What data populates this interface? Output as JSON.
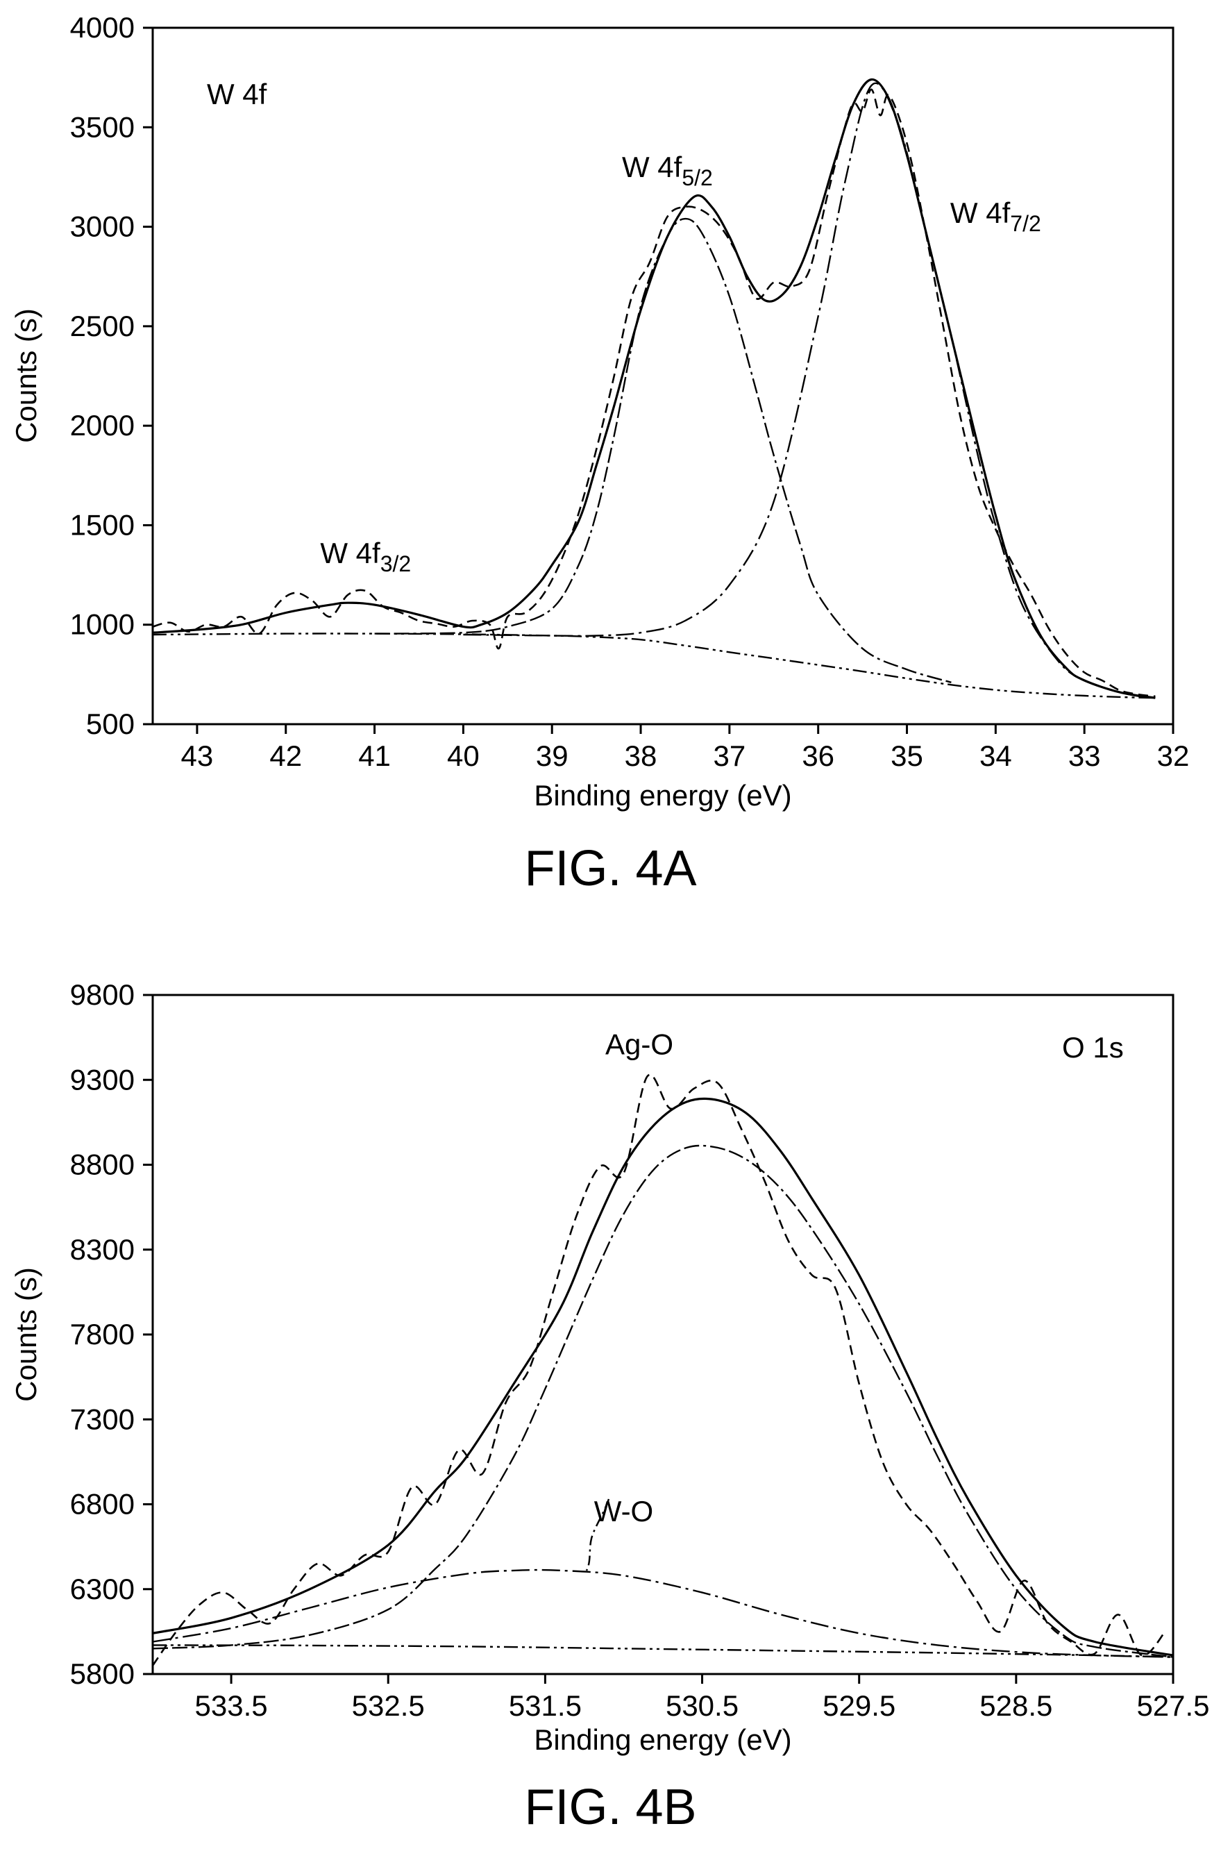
{
  "chart_data": [
    {
      "type": "line",
      "caption": "FIG. 4A",
      "panel_label": "W 4f",
      "xlabel": "Binding energy (eV)",
      "ylabel": "Counts (s)",
      "xlim": [
        43.5,
        32
      ],
      "ylim": [
        500,
        4000
      ],
      "x_reversed": true,
      "xticks": [
        43,
        42,
        41,
        40,
        39,
        38,
        37,
        36,
        35,
        34,
        33,
        32
      ],
      "yticks": [
        500,
        1000,
        1500,
        2000,
        2500,
        3000,
        3500,
        4000
      ],
      "grid": false,
      "legend": "none",
      "annotations": [
        {
          "base": "W 4f",
          "sub": "3/2",
          "x": 41.1,
          "y": 1310
        },
        {
          "base": "W 4f",
          "sub": "5/2",
          "x": 37.7,
          "y": 3250
        },
        {
          "base": "W 4f",
          "sub": "7/2",
          "x": 34.0,
          "y": 3020
        }
      ],
      "series": [
        {
          "role": "background",
          "style": "dash-dot-dot",
          "x": [
            43.5,
            42,
            41,
            40,
            39,
            38.5,
            38,
            37.5,
            37,
            36.5,
            36,
            35.5,
            35,
            34.5,
            34,
            33.5,
            33,
            32.5,
            32.2
          ],
          "y": [
            950,
            955,
            955,
            952,
            945,
            938,
            925,
            895,
            862,
            830,
            798,
            765,
            730,
            698,
            672,
            655,
            643,
            635,
            632
          ]
        },
        {
          "role": "component W 4f7/2",
          "style": "dash-dot",
          "x": [
            40,
            39,
            38.5,
            38,
            37.5,
            37,
            36.5,
            36,
            35.7,
            35.4,
            35.1,
            34.8,
            34.5,
            34.2,
            34,
            33.7,
            33.3,
            33,
            32.5,
            32.2
          ],
          "y": [
            950,
            945,
            945,
            960,
            1020,
            1200,
            1620,
            2550,
            3220,
            3710,
            3520,
            3000,
            2450,
            1850,
            1500,
            1100,
            820,
            720,
            650,
            632
          ]
        },
        {
          "role": "component W 4f5/2",
          "style": "dash-dash-dot",
          "x": [
            41,
            40,
            39.5,
            39,
            38.7,
            38.5,
            38.3,
            38,
            37.7,
            37.5,
            37.3,
            37,
            36.7,
            36.5,
            36.2,
            36,
            35.5,
            35,
            34.5
          ],
          "y": [
            955,
            960,
            990,
            1080,
            1300,
            1560,
            1950,
            2600,
            2950,
            3040,
            2960,
            2650,
            2180,
            1850,
            1400,
            1150,
            880,
            775,
            710
          ]
        },
        {
          "role": "envelope fit",
          "style": "solid",
          "x": [
            43.5,
            43,
            42.5,
            42,
            41.5,
            41.3,
            41,
            40.5,
            40,
            39.8,
            39.5,
            39.2,
            39,
            38.7,
            38.5,
            38.3,
            38,
            37.7,
            37.4,
            37.2,
            37,
            36.8,
            36.6,
            36.4,
            36.2,
            36,
            35.8,
            35.6,
            35.4,
            35.2,
            35,
            34.8,
            34.5,
            34.2,
            34,
            33.8,
            33.5,
            33.2,
            33,
            32.6,
            32.2
          ],
          "y": [
            960,
            975,
            1000,
            1060,
            1100,
            1110,
            1100,
            1050,
            990,
            1000,
            1060,
            1180,
            1300,
            1520,
            1800,
            2100,
            2580,
            2950,
            3150,
            3100,
            2950,
            2750,
            2630,
            2660,
            2800,
            3050,
            3350,
            3620,
            3740,
            3640,
            3360,
            3000,
            2450,
            1900,
            1550,
            1250,
            950,
            780,
            720,
            660,
            632
          ]
        },
        {
          "role": "experimental data",
          "style": "dashed",
          "x": [
            43.5,
            43.3,
            43.1,
            42.9,
            42.7,
            42.5,
            42.3,
            42.1,
            41.9,
            41.7,
            41.5,
            41.3,
            41.1,
            40.9,
            40.7,
            40.5,
            40.3,
            40.1,
            39.9,
            39.7,
            39.6,
            39.5,
            39.3,
            39.1,
            38.9,
            38.7,
            38.5,
            38.3,
            38.1,
            37.9,
            37.7,
            37.5,
            37.3,
            37.1,
            36.9,
            36.7,
            36.5,
            36.3,
            36.1,
            35.9,
            35.7,
            35.6,
            35.5,
            35.4,
            35.3,
            35.2,
            35.0,
            34.8,
            34.6,
            34.4,
            34.2,
            34.0,
            33.8,
            33.6,
            33.4,
            33.2,
            33.0,
            32.8,
            32.6,
            32.4,
            32.2
          ],
          "y": [
            990,
            1010,
            965,
            1000,
            990,
            1040,
            955,
            1100,
            1160,
            1120,
            1040,
            1150,
            1170,
            1090,
            1060,
            1020,
            1005,
            990,
            1020,
            1000,
            880,
            1040,
            1060,
            1150,
            1320,
            1560,
            1880,
            2250,
            2650,
            2820,
            3050,
            3100,
            3080,
            3000,
            2850,
            2640,
            2720,
            2700,
            2780,
            3150,
            3500,
            3620,
            3580,
            3690,
            3560,
            3660,
            3420,
            3000,
            2520,
            2050,
            1700,
            1480,
            1300,
            1150,
            980,
            850,
            760,
            720,
            670,
            650,
            640
          ]
        }
      ]
    },
    {
      "type": "line",
      "caption": "FIG. 4B",
      "panel_label": "O 1s",
      "xlabel": "Binding energy (eV)",
      "ylabel": "Counts (s)",
      "xlim": [
        534,
        527.5
      ],
      "ylim": [
        5800,
        9800
      ],
      "x_reversed": true,
      "xticks": [
        533.5,
        532.5,
        531.5,
        530.5,
        529.5,
        528.5,
        527.5
      ],
      "yticks": [
        5800,
        6300,
        6800,
        7300,
        7800,
        8300,
        8800,
        9300,
        9800
      ],
      "grid": false,
      "legend": "none",
      "annotations": [
        {
          "base": "Ag-O",
          "sub": "",
          "x": 530.9,
          "y": 9450
        },
        {
          "base": "W-O",
          "sub": "",
          "x": 531.0,
          "y": 6700
        }
      ],
      "series": [
        {
          "role": "background",
          "style": "dash-dot-dot",
          "x": [
            534,
            533,
            532,
            531,
            530,
            529,
            528,
            527.5
          ],
          "y": [
            5970,
            5968,
            5962,
            5950,
            5938,
            5925,
            5910,
            5900
          ]
        },
        {
          "role": "component W-O",
          "style": "dash-dot",
          "x": [
            534,
            533.5,
            533,
            532.5,
            532,
            531.7,
            531.4,
            531,
            530.5,
            530,
            529.5,
            529,
            528.5,
            528,
            527.5
          ],
          "y": [
            5990,
            6070,
            6190,
            6310,
            6390,
            6410,
            6410,
            6380,
            6280,
            6150,
            6040,
            5970,
            5930,
            5910,
            5900
          ]
        },
        {
          "role": "component Ag-O",
          "style": "dash-dash-dot",
          "x": [
            534,
            533.5,
            533,
            532.5,
            532.2,
            532,
            531.7,
            531.5,
            531.2,
            531,
            530.8,
            530.6,
            530.4,
            530.2,
            530,
            529.8,
            529.5,
            529.2,
            529,
            528.8,
            528.5,
            528.2,
            528,
            527.5
          ],
          "y": [
            5950,
            5970,
            6030,
            6180,
            6420,
            6620,
            7080,
            7480,
            8120,
            8510,
            8780,
            8900,
            8900,
            8820,
            8660,
            8420,
            7980,
            7460,
            7080,
            6730,
            6300,
            6030,
            5960,
            5900
          ]
        },
        {
          "role": "envelope fit",
          "style": "solid",
          "x": [
            534,
            533.5,
            533,
            532.5,
            532.2,
            532,
            531.7,
            531.4,
            531.2,
            531,
            530.8,
            530.6,
            530.4,
            530.2,
            530,
            529.8,
            529.5,
            529.2,
            529,
            528.8,
            528.5,
            528.2,
            528,
            527.5
          ],
          "y": [
            6040,
            6130,
            6300,
            6560,
            6880,
            7080,
            7510,
            7960,
            8400,
            8790,
            9040,
            9170,
            9180,
            9090,
            8880,
            8600,
            8150,
            7580,
            7180,
            6820,
            6380,
            6080,
            5990,
            5910
          ]
        },
        {
          "role": "experimental data",
          "style": "dashed",
          "x": [
            534,
            533.85,
            533.7,
            533.55,
            533.4,
            533.25,
            533.1,
            532.95,
            532.8,
            532.65,
            532.5,
            532.35,
            532.2,
            532.05,
            531.9,
            531.75,
            531.6,
            531.45,
            531.3,
            531.15,
            531,
            530.85,
            530.7,
            530.55,
            530.4,
            530.25,
            530.1,
            529.95,
            529.8,
            529.65,
            529.5,
            529.35,
            529.2,
            529.05,
            528.9,
            528.75,
            528.6,
            528.45,
            528.3,
            528.15,
            528,
            527.85,
            527.7,
            527.55
          ],
          "y": [
            5850,
            6050,
            6210,
            6280,
            6180,
            6100,
            6300,
            6450,
            6380,
            6500,
            6520,
            6900,
            6800,
            7120,
            6980,
            7400,
            7600,
            8050,
            8500,
            8790,
            8750,
            9320,
            9130,
            9250,
            9280,
            9010,
            8700,
            8350,
            8150,
            8070,
            7510,
            7050,
            6800,
            6650,
            6450,
            6230,
            6050,
            6350,
            6100,
            5990,
            5920,
            6150,
            5910,
            6050
          ]
        }
      ]
    }
  ]
}
